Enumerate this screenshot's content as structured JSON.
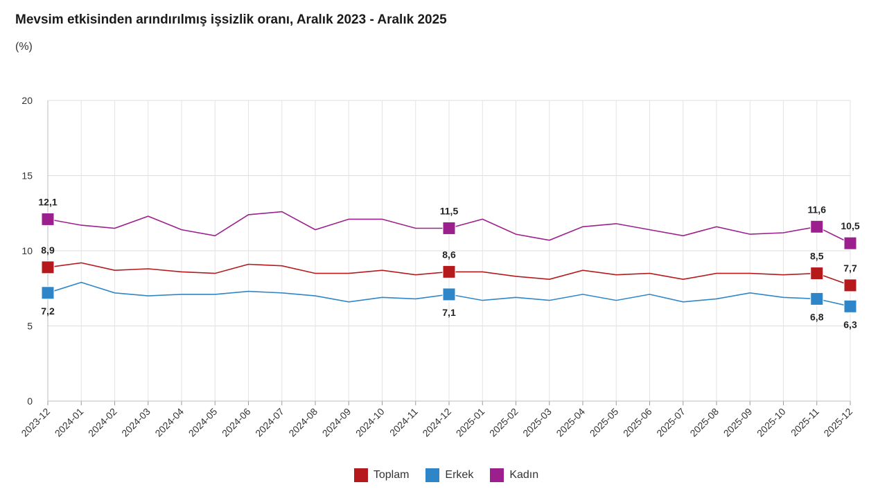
{
  "title": "Mevsim etkisinden arındırılmış işsizlik oranı, Aralık 2023 - Aralık 2025",
  "unit": "(%)",
  "chart_data": {
    "type": "line",
    "categories": [
      "2023-12",
      "2024-01",
      "2024-02",
      "2024-03",
      "2024-04",
      "2024-05",
      "2024-06",
      "2024-07",
      "2024-08",
      "2024-09",
      "2024-10",
      "2024-11",
      "2024-12",
      "2025-01",
      "2025-02",
      "2025-03",
      "2025-04",
      "2025-05",
      "2025-06",
      "2025-07",
      "2025-08",
      "2025-09",
      "2025-10",
      "2025-11",
      "2025-12"
    ],
    "ylim": [
      0,
      20
    ],
    "yticks": [
      "0",
      "5",
      "10",
      "15",
      "20"
    ],
    "grid": true,
    "legend_position": "bottom",
    "series": [
      {
        "name": "Toplam",
        "color": "#b5191c",
        "values": [
          8.9,
          9.2,
          8.7,
          8.8,
          8.6,
          8.5,
          9.1,
          9.0,
          8.5,
          8.5,
          8.7,
          8.4,
          8.6,
          8.6,
          8.3,
          8.1,
          8.7,
          8.4,
          8.5,
          8.1,
          8.5,
          8.5,
          8.4,
          8.5,
          7.7
        ]
      },
      {
        "name": "Erkek",
        "color": "#2e86c8",
        "values": [
          7.2,
          7.9,
          7.2,
          7.0,
          7.1,
          7.1,
          7.3,
          7.2,
          7.0,
          6.6,
          6.9,
          6.8,
          7.1,
          6.7,
          6.9,
          6.7,
          7.1,
          6.7,
          7.1,
          6.6,
          6.8,
          7.2,
          6.9,
          6.8,
          6.3
        ]
      },
      {
        "name": "Kadın",
        "color": "#9c1f8e",
        "values": [
          12.1,
          11.7,
          11.5,
          12.3,
          11.4,
          11.0,
          12.4,
          12.6,
          11.4,
          12.1,
          12.1,
          11.5,
          11.5,
          12.1,
          11.1,
          10.7,
          11.6,
          11.8,
          11.4,
          11.0,
          11.6,
          11.1,
          11.2,
          11.6,
          10.5
        ]
      }
    ],
    "highlight_points": [
      0,
      12,
      23,
      24
    ],
    "data_labels": [
      {
        "series": 0,
        "index": 0,
        "text": "8,9"
      },
      {
        "series": 1,
        "index": 0,
        "text": "7,2"
      },
      {
        "series": 2,
        "index": 0,
        "text": "12,1"
      },
      {
        "series": 0,
        "index": 12,
        "text": "8,6"
      },
      {
        "series": 1,
        "index": 12,
        "text": "7,1"
      },
      {
        "series": 2,
        "index": 12,
        "text": "11,5"
      },
      {
        "series": 0,
        "index": 23,
        "text": "8,5"
      },
      {
        "series": 1,
        "index": 23,
        "text": "6,8"
      },
      {
        "series": 2,
        "index": 23,
        "text": "11,6"
      },
      {
        "series": 0,
        "index": 24,
        "text": "7,7"
      },
      {
        "series": 1,
        "index": 24,
        "text": "6,3"
      },
      {
        "series": 2,
        "index": 24,
        "text": "10,5"
      }
    ]
  }
}
